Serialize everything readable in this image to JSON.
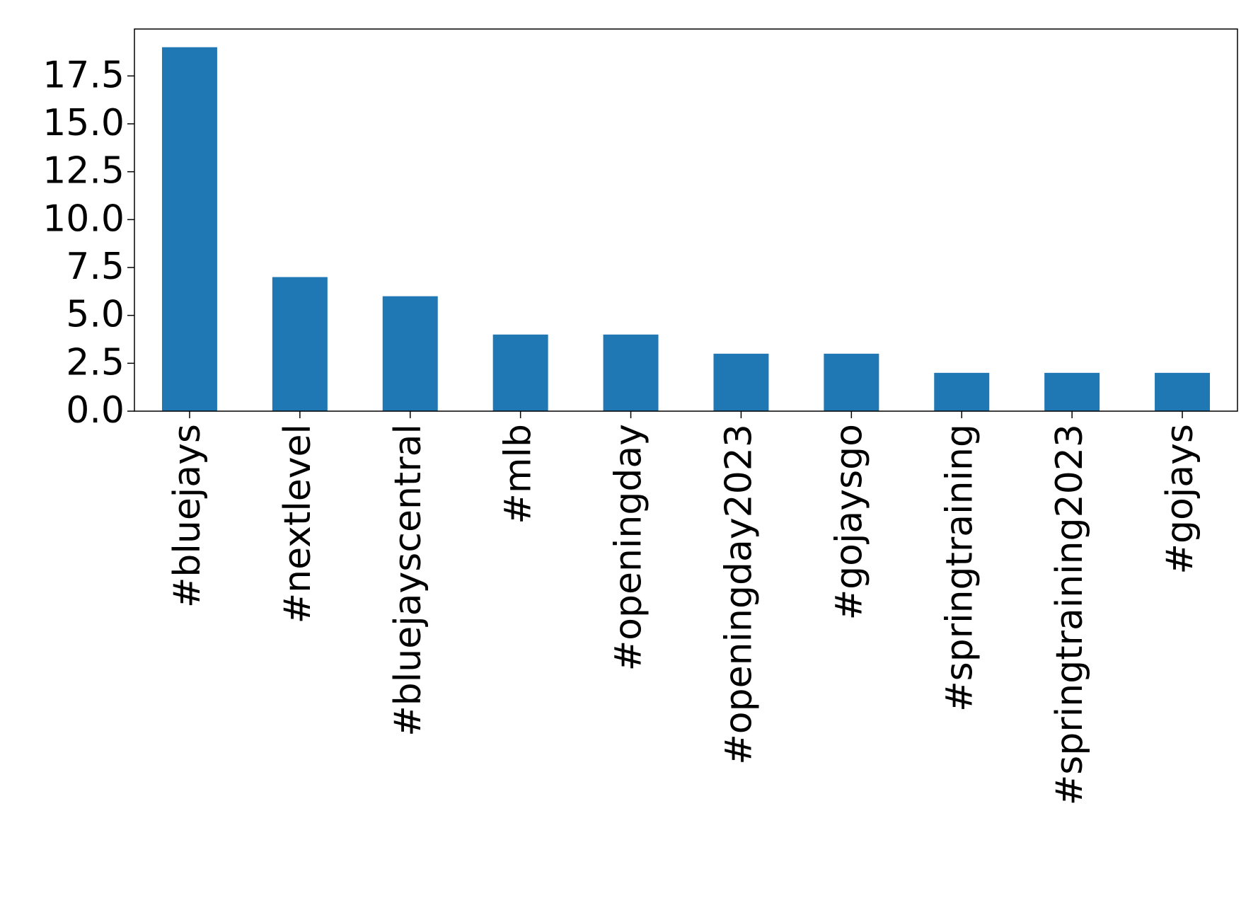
{
  "chart_data": {
    "type": "bar",
    "categories": [
      "#bluejays",
      "#nextlevel",
      "#bluejayscentral",
      "#mlb",
      "#openingday",
      "#openingday2023",
      "#gojaysgo",
      "#springtraining",
      "#springtraining2023",
      "#gojays"
    ],
    "values": [
      19,
      7,
      6,
      4,
      4,
      3,
      3,
      2,
      2,
      2
    ],
    "color": "#1f77b4",
    "ylim": [
      0,
      19.95
    ],
    "yticks": [
      {
        "value": 0,
        "label": "0.0"
      },
      {
        "value": 2.5,
        "label": "2.5"
      },
      {
        "value": 5,
        "label": "5.0"
      },
      {
        "value": 7.5,
        "label": "7.5"
      },
      {
        "value": 10,
        "label": "10.0"
      },
      {
        "value": 12.5,
        "label": "12.5"
      },
      {
        "value": 15,
        "label": "15.0"
      },
      {
        "value": 17.5,
        "label": "17.5"
      }
    ],
    "grid": false
  }
}
